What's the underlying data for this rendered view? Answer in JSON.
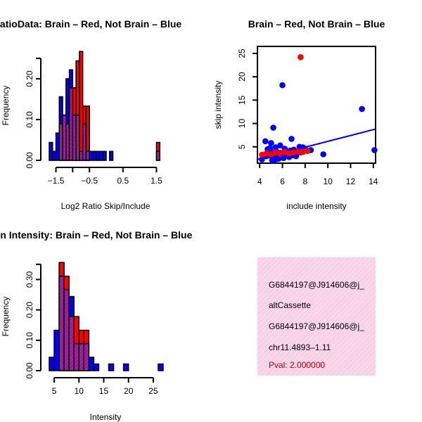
{
  "colors": {
    "red": "#ff0000",
    "blue": "#0000ff",
    "overlap": "#a020a0",
    "info_bg": "#f9d7ea"
  },
  "chart_data": [
    {
      "id": "ratio",
      "type": "bar",
      "title": "RatioData: Brain – Red, Not Brain – Blue",
      "xlabel": "Log2 Ratio Skip/Include",
      "ylabel": "Frequency",
      "xlim": [
        -1.7,
        1.7
      ],
      "ylim": [
        0,
        0.27
      ],
      "xticks": [
        -1.5,
        -0.5,
        0.5,
        1.5
      ],
      "xtick_labels": [
        "−1.5",
        "−0.5",
        "0.5",
        "1.5"
      ],
      "extra_xtick": -1.0,
      "yticks": [
        0,
        0.1,
        0.2
      ],
      "ytick_labels": [
        "0.00",
        "0.10",
        "0.20"
      ],
      "bin_starts": [
        -1.7,
        -1.6,
        -1.5,
        -1.4,
        -1.3,
        -1.2,
        -1.1,
        -1.0,
        -0.9,
        -0.8,
        -0.7,
        -0.6,
        -0.5,
        -0.4,
        -0.3,
        -0.2,
        -0.1,
        0.0,
        0.1,
        0.2,
        0.3,
        0.4,
        0.5,
        0.6,
        0.7,
        0.8,
        0.9,
        1.0,
        1.1,
        1.2,
        1.3,
        1.4,
        1.5
      ],
      "bin_width": 0.1,
      "series": [
        {
          "name": "Brain",
          "color": "red",
          "values": [
            0,
            0,
            0,
            0.089,
            0.111,
            0.089,
            0.178,
            0.178,
            0.244,
            0.267,
            0.133,
            0.133,
            0,
            0,
            0,
            0,
            0,
            0,
            0,
            0,
            0,
            0,
            0,
            0,
            0,
            0,
            0,
            0,
            0,
            0,
            0,
            0,
            0.044
          ]
        },
        {
          "name": "Not Brain",
          "color": "blue",
          "values": [
            0.044,
            0.022,
            0.067,
            0.156,
            0.111,
            0.2,
            0.222,
            0.111,
            0.111,
            0.022,
            0.089,
            0.022,
            0.022,
            0.022,
            0.022,
            0.022,
            0.022,
            0.0,
            0.022,
            0,
            0,
            0,
            0,
            0,
            0,
            0,
            0,
            0,
            0,
            0,
            0,
            0,
            0.022
          ]
        }
      ]
    },
    {
      "id": "scatter",
      "type": "scatter",
      "title": "Brain – Red, Not Brain – Blue",
      "xlabel": "include intensity",
      "ylabel": "skip intensity",
      "xlim": [
        3.8,
        14.2
      ],
      "ylim": [
        1.5,
        26.5
      ],
      "xticks": [
        4,
        6,
        8,
        10,
        12,
        14
      ],
      "xtick_labels": [
        "4",
        "6",
        "8",
        "10",
        "12",
        "14"
      ],
      "yticks": [
        5,
        10,
        15,
        20,
        25
      ],
      "ytick_labels": [
        "5",
        "10",
        "15",
        "20",
        "25"
      ],
      "series": [
        {
          "name": "Not Brain",
          "color": "blue",
          "x": [
            6.0,
            13.0,
            5.2,
            14.1,
            6.8,
            4.5,
            5.0,
            5.4,
            5.8,
            6.2,
            6.5,
            7.0,
            7.5,
            8.0,
            9.6,
            4.2,
            4.6,
            4.8,
            5.1,
            5.3,
            5.5,
            5.7,
            5.9,
            6.1,
            6.3,
            6.6,
            6.9,
            7.2,
            7.6,
            4.7,
            5.0,
            5.2,
            5.6,
            6.0,
            6.4,
            4.9,
            5.3,
            5.8,
            6.7,
            7.8,
            5.1,
            5.4,
            5.5,
            6.2,
            8.5
          ],
          "y": [
            18.2,
            13.1,
            9.1,
            4.3,
            6.7,
            6.2,
            5.8,
            4.9,
            5.3,
            4.1,
            3.9,
            4.4,
            5.0,
            4.6,
            3.4,
            2.3,
            3.0,
            3.6,
            2.7,
            3.3,
            2.9,
            2.5,
            3.1,
            2.6,
            3.5,
            2.8,
            3.2,
            3.0,
            3.8,
            4.5,
            4.0,
            3.6,
            2.4,
            2.9,
            3.4,
            4.7,
            2.2,
            3.7,
            4.2,
            4.9,
            2.1,
            2.6,
            3.9,
            4.6,
            4.3
          ]
        },
        {
          "name": "Brain",
          "color": "red",
          "x": [
            7.6,
            4.2,
            4.6,
            5.0,
            5.4,
            5.8,
            6.2,
            6.6,
            7.0,
            7.4,
            7.8,
            8.2
          ],
          "y": [
            24.2,
            3.3,
            3.6,
            3.4,
            3.8,
            3.5,
            3.9,
            3.6,
            3.8,
            4.0,
            3.9,
            4.1
          ]
        }
      ],
      "fit_lines": [
        {
          "name": "Not Brain fit",
          "color": "blue",
          "x": [
            3.8,
            14.2
          ],
          "y": [
            2.3,
            8.8
          ]
        },
        {
          "name": "Brain fit",
          "color": "red",
          "x": [
            4.0,
            8.3
          ],
          "y": [
            3.2,
            4.2
          ]
        }
      ]
    },
    {
      "id": "intensity",
      "type": "bar",
      "title": "Exon Intensity: Brain – Red, Not Brain – Blue",
      "xlabel": "Intensity",
      "ylabel": "Frequency",
      "xlim": [
        4,
        27
      ],
      "ylim": [
        0,
        0.35
      ],
      "xticks": [
        5,
        10,
        15,
        20,
        25
      ],
      "xtick_labels": [
        "5",
        "10",
        "15",
        "20",
        "25"
      ],
      "yticks": [
        0,
        0.1,
        0.2,
        0.3
      ],
      "ytick_labels": [
        "0.00",
        "0.10",
        "0.20",
        "0.30"
      ],
      "bin_starts": [
        4,
        5,
        6,
        7,
        8,
        9,
        10,
        11,
        12,
        13,
        14,
        15,
        16,
        17,
        18,
        19,
        20,
        21,
        22,
        23,
        24,
        25,
        26
      ],
      "bin_width": 1,
      "series": [
        {
          "name": "Brain",
          "color": "red",
          "values": [
            0,
            0,
            0.356,
            0.311,
            0.178,
            0.178,
            0.133,
            0.133,
            0,
            0,
            0,
            0,
            0,
            0,
            0,
            0,
            0,
            0,
            0,
            0,
            0,
            0,
            0
          ]
        },
        {
          "name": "Not Brain",
          "color": "blue",
          "values": [
            0.044,
            0.133,
            0.311,
            0.267,
            0.244,
            0.089,
            0.089,
            0.089,
            0.044,
            0.022,
            0,
            0,
            0.022,
            0,
            0,
            0.022,
            0,
            0,
            0,
            0,
            0,
            0,
            0.022
          ]
        }
      ]
    }
  ],
  "info_panel": {
    "lines": [
      "G6844197@J914606@j_",
      "altCassette",
      "G6844197@J914606@j_",
      "chr11.4893–1.11"
    ],
    "pval": "Pval: 2.000000"
  }
}
